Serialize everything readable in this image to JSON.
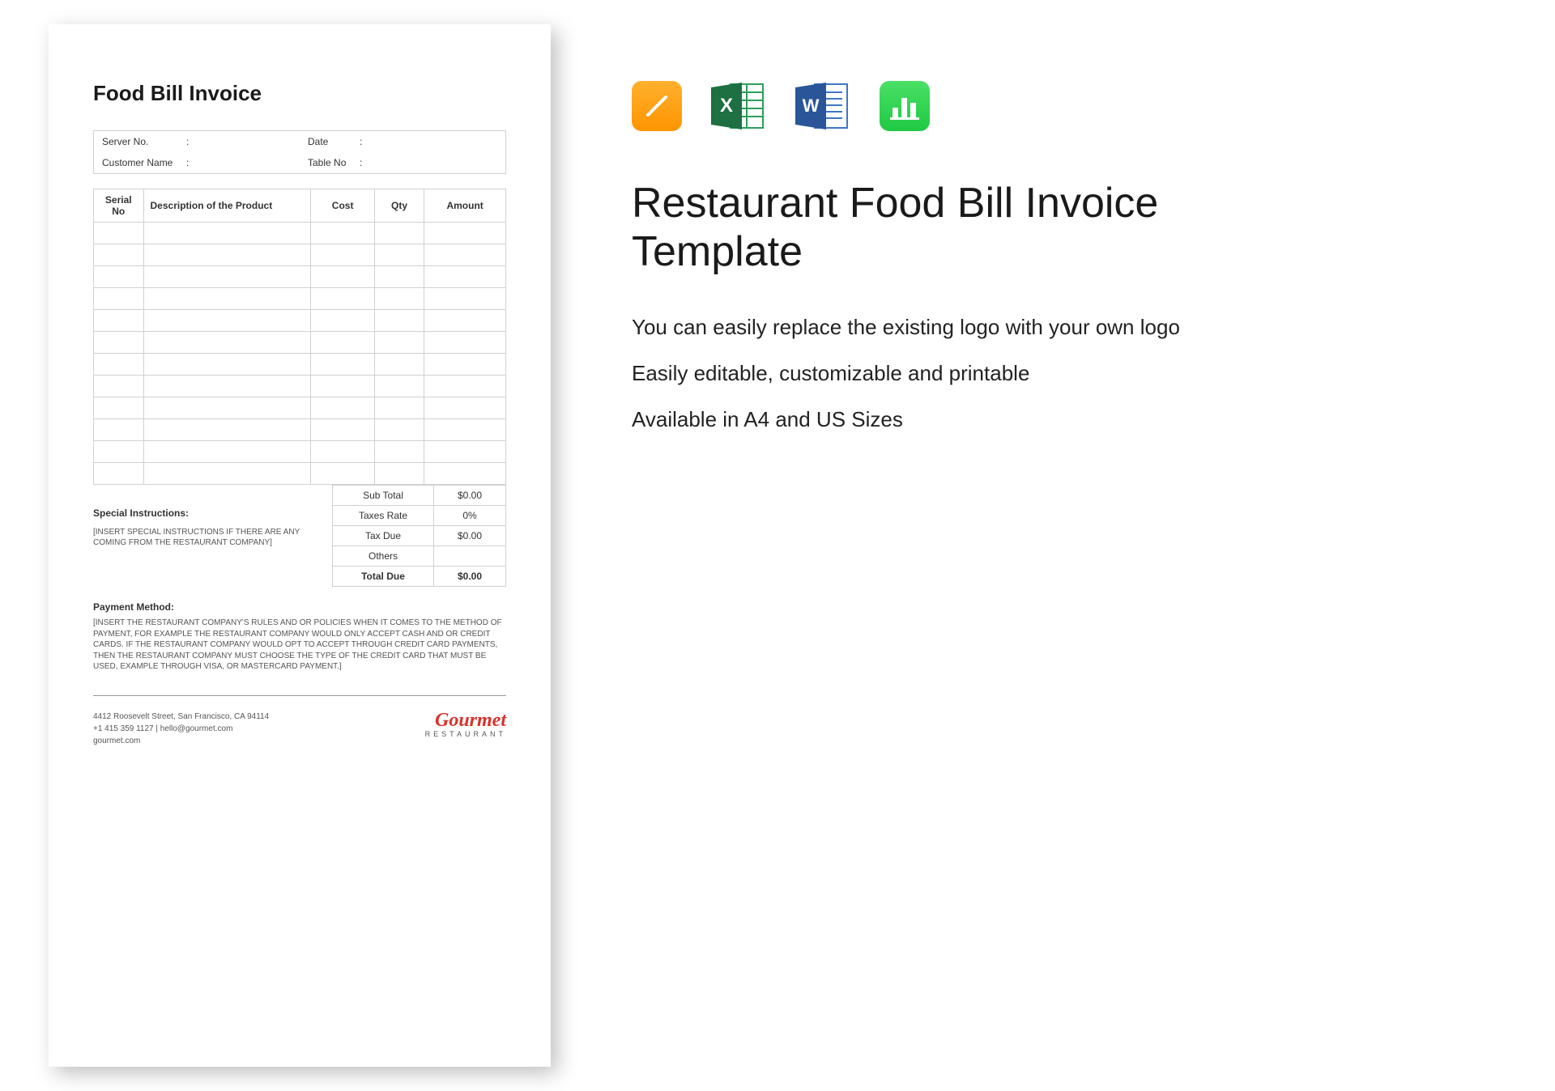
{
  "document": {
    "title": "Food Bill Invoice",
    "info": {
      "server_no_label": "Server No.",
      "customer_name_label": "Customer Name",
      "date_label": "Date",
      "table_no_label": "Table No"
    },
    "table": {
      "headers": {
        "serial": "Serial No",
        "description": "Description of the Product",
        "cost": "Cost",
        "qty": "Qty",
        "amount": "Amount"
      },
      "empty_row_count": 12
    },
    "totals": {
      "subtotal_label": "Sub Total",
      "subtotal_value": "$0.00",
      "taxes_rate_label": "Taxes Rate",
      "taxes_rate_value": "0%",
      "tax_due_label": "Tax Due",
      "tax_due_value": "$0.00",
      "others_label": "Others",
      "others_value": "",
      "total_due_label": "Total Due",
      "total_due_value": "$0.00"
    },
    "special": {
      "title": "Special Instructions:",
      "body": "[INSERT SPECIAL INSTRUCTIONS IF THERE ARE ANY COMING FROM THE RESTAURANT COMPANY]"
    },
    "payment": {
      "title": "Payment Method:",
      "body": "[INSERT THE RESTAURANT COMPANY'S RULES AND OR POLICIES WHEN IT COMES TO THE METHOD OF PAYMENT, FOR EXAMPLE THE RESTAURANT COMPANY WOULD ONLY ACCEPT CASH AND OR CREDIT CARDS. IF THE RESTAURANT COMPANY WOULD OPT TO ACCEPT THROUGH CREDIT CARD PAYMENTS, THEN THE RESTAURANT COMPANY MUST CHOOSE THE TYPE OF THE CREDIT CARD THAT MUST BE USED, EXAMPLE THROUGH VISA, OR MASTERCARD PAYMENT.]"
    },
    "footer": {
      "address": "4412 Roosevelt Street, San Francisco, CA 94114",
      "contact": "+1 415 359 1127 | hello@gourmet.com",
      "website": "gourmet.com",
      "logo_main": "Gourmet",
      "logo_sub": "RESTAURANT"
    }
  },
  "sidebar": {
    "title": "Restaurant Food Bill Invoice Template",
    "bullets": [
      "You can easily replace the existing logo with your own logo",
      "Easily editable, customizable and printable",
      "Available in A4 and US Sizes"
    ],
    "icons": {
      "pages_color": "#ff9500",
      "excel_color_dark": "#1e6f42",
      "excel_color_light": "#2e9e5b",
      "word_color_dark": "#2a5699",
      "word_color_light": "#3f76c4",
      "numbers_color": "#32d74b"
    }
  }
}
